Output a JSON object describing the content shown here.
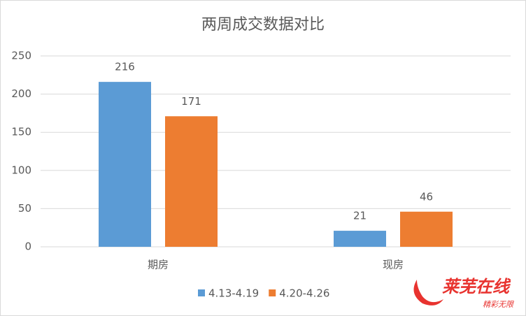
{
  "chart_data": {
    "type": "bar",
    "title": "两周成交数据对比",
    "categories": [
      "期房",
      "现房"
    ],
    "series": [
      {
        "name": "4.13-4.19",
        "color": "#5b9bd5",
        "values": [
          216,
          21
        ]
      },
      {
        "name": "4.20-4.26",
        "color": "#ed7d31",
        "values": [
          171,
          46
        ]
      }
    ],
    "ylim": [
      0,
      250
    ],
    "yticks": [
      0,
      50,
      100,
      150,
      200,
      250
    ],
    "grid": true,
    "legend": "bottom",
    "watermark": "莱芜在线",
    "watermark_sub": "精彩无限"
  }
}
